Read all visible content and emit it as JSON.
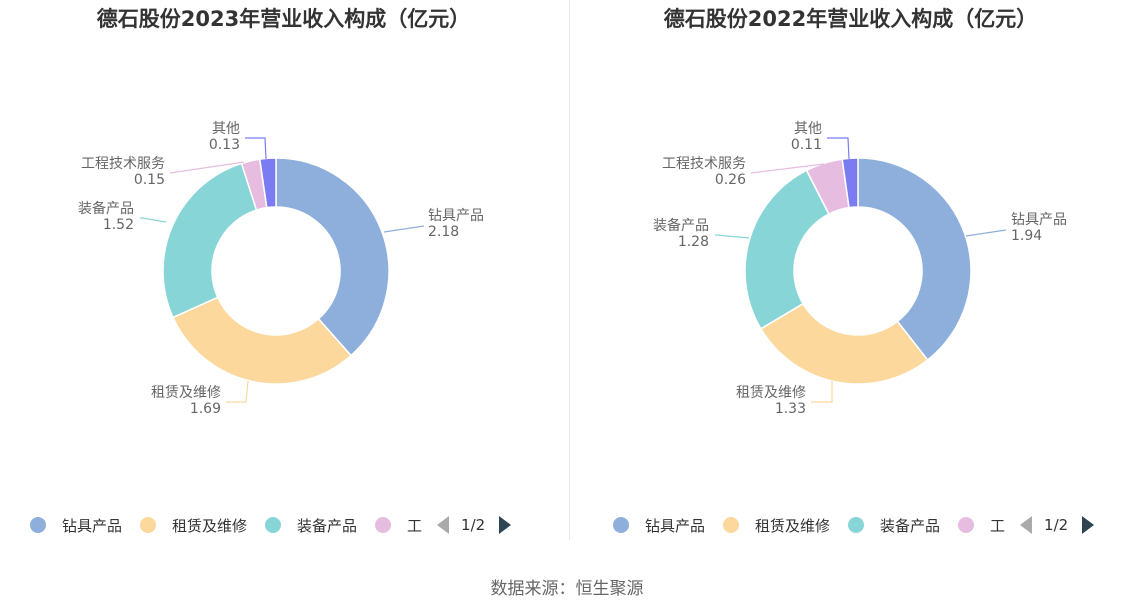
{
  "colors": [
    "#8eaedb",
    "#fcd89d",
    "#88d5d8",
    "#e6bde0",
    "#7b7cf2"
  ],
  "legend": {
    "items": [
      "钻具产品",
      "租赁及维修",
      "装备产品",
      "工"
    ],
    "page": "1/2"
  },
  "source": "数据来源：恒生聚源",
  "chart_data": [
    {
      "type": "pie",
      "title": "德石股份2023年营业收入构成（亿元）",
      "categories": [
        "钻具产品",
        "租赁及维修",
        "装备产品",
        "工程技术服务",
        "其他"
      ],
      "values": [
        2.18,
        1.69,
        1.52,
        0.15,
        0.13
      ],
      "labels": [
        "2.18",
        "1.69",
        "1.52",
        "0.15",
        "0.13"
      ],
      "legend_position": "bottom"
    },
    {
      "type": "pie",
      "title": "德石股份2022年营业收入构成（亿元）",
      "categories": [
        "钻具产品",
        "租赁及维修",
        "装备产品",
        "工程技术服务",
        "其他"
      ],
      "values": [
        1.94,
        1.33,
        1.28,
        0.26,
        0.11
      ],
      "labels": [
        "1.94",
        "1.33",
        "1.28",
        "0.26",
        "0.11"
      ],
      "legend_position": "bottom"
    }
  ]
}
